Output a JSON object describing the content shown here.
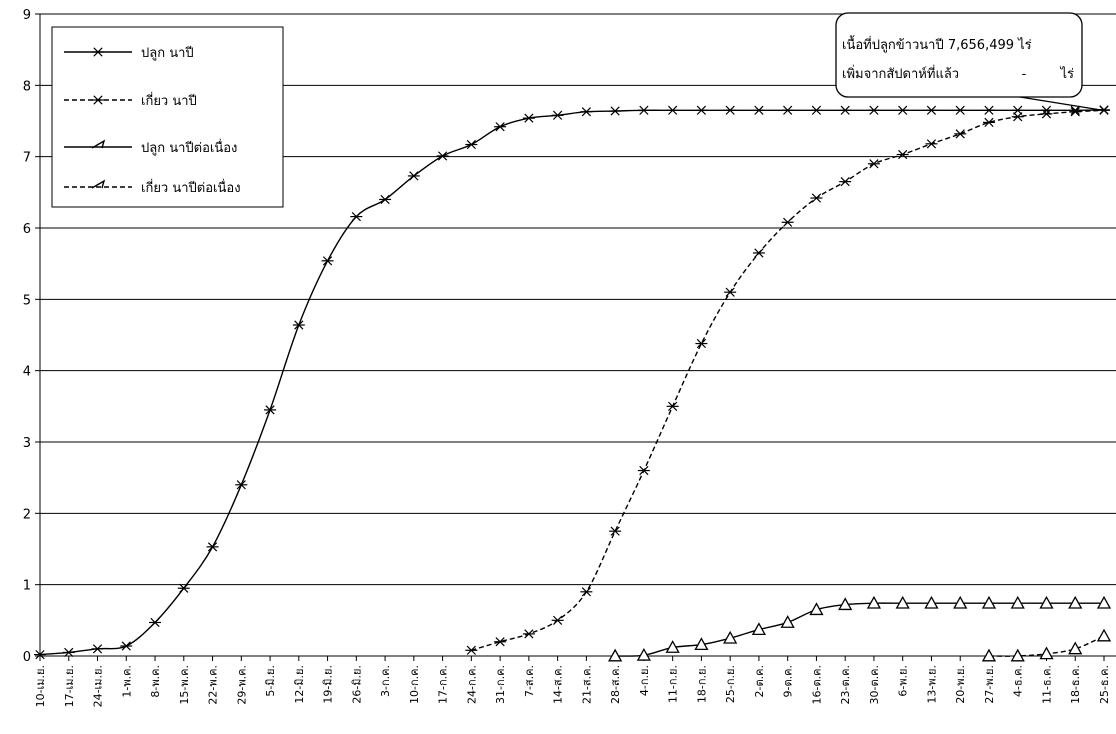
{
  "chart_data": {
    "type": "line",
    "title": "",
    "xlabel": "",
    "ylabel": "",
    "ylim": [
      0,
      9
    ],
    "yticks": [
      "0",
      "1",
      "2",
      "3",
      "4",
      "5",
      "6",
      "7",
      "8",
      "9"
    ],
    "grid": "horizontal",
    "legend_position": "top-left",
    "categories": [
      "10-เม.ย.",
      "17-เม.ย.",
      "24-เม.ย.",
      "1-พ.ค.",
      "8-พ.ค.",
      "15-พ.ค.",
      "22-พ.ค.",
      "29-พ.ค.",
      "5-มิ.ย.",
      "12-มิ.ย.",
      "19-มิ.ย.",
      "26-มิ.ย.",
      "3-ก.ค.",
      "10-ก.ค.",
      "17-ก.ค.",
      "24-ก.ค.",
      "31-ก.ค.",
      "7-ส.ค.",
      "14-ส.ค.",
      "21-ส.ค.",
      "28-ส.ค.",
      "4-ก.ย.",
      "11-ก.ย.",
      "18-ก.ย.",
      "25-ก.ย.",
      "2-ต.ค.",
      "9-ต.ค.",
      "16-ต.ค.",
      "23-ต.ค.",
      "30-ต.ค.",
      "6-พ.ย.",
      "13-พ.ย.",
      "20-พ.ย.",
      "27-พ.ย.",
      "4-ธ.ค.",
      "11-ธ.ค.",
      "18-ธ.ค.",
      "25-ธ.ค."
    ],
    "series": [
      {
        "name": "ปลูก นาปี",
        "line": "solid",
        "marker": "asterisk",
        "values": [
          0.02,
          0.05,
          0.1,
          0.14,
          0.47,
          0.95,
          1.53,
          2.4,
          3.45,
          4.64,
          5.54,
          6.16,
          6.4,
          6.73,
          7.01,
          7.17,
          7.42,
          7.54,
          7.58,
          7.63,
          7.64,
          7.65,
          7.65,
          7.65,
          7.65,
          7.65,
          7.65,
          7.65,
          7.65,
          7.65,
          7.65,
          7.65,
          7.65,
          7.65,
          7.65,
          7.65,
          7.65,
          7.656
        ]
      },
      {
        "name": "เกี่ยว นาปี",
        "line": "dashed",
        "marker": "asterisk",
        "values": [
          null,
          null,
          null,
          null,
          null,
          null,
          null,
          null,
          null,
          null,
          null,
          null,
          null,
          null,
          null,
          0.08,
          0.2,
          0.31,
          0.5,
          0.9,
          1.75,
          2.6,
          3.5,
          4.38,
          5.1,
          5.65,
          6.08,
          6.42,
          6.65,
          6.9,
          7.03,
          7.18,
          7.32,
          7.48,
          7.56,
          7.6,
          7.63,
          7.65
        ]
      },
      {
        "name": "ปลูก นาปีต่อเนื่อง",
        "line": "solid",
        "marker": "triangle",
        "values": [
          null,
          null,
          null,
          null,
          null,
          null,
          null,
          null,
          null,
          null,
          null,
          null,
          null,
          null,
          null,
          null,
          null,
          null,
          null,
          null,
          0.0,
          0.01,
          0.12,
          0.16,
          0.25,
          0.37,
          0.47,
          0.65,
          0.72,
          0.74,
          0.74,
          0.74,
          0.74,
          0.74,
          0.74,
          0.74,
          0.74,
          0.74
        ]
      },
      {
        "name": "เกี่ยว นาปีต่อเนื่อง",
        "line": "dashed",
        "marker": "triangle",
        "values": [
          null,
          null,
          null,
          null,
          null,
          null,
          null,
          null,
          null,
          null,
          null,
          null,
          null,
          null,
          null,
          null,
          null,
          null,
          null,
          null,
          null,
          null,
          null,
          null,
          null,
          null,
          null,
          null,
          null,
          null,
          null,
          null,
          null,
          0.0,
          0.0,
          0.03,
          0.1,
          0.28
        ]
      }
    ],
    "annotation": {
      "line1": "เนื้อที่ปลูกข้าวนาปี 7,656,499 ไร่",
      "line2_label": "เพิ่มจากสัปดาห์ที่แล้ว",
      "line2_value": "-",
      "line2_unit": "ไร่"
    }
  }
}
